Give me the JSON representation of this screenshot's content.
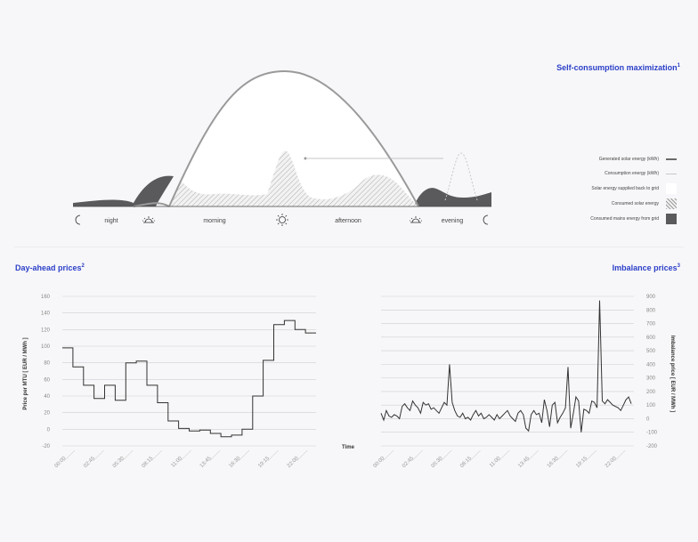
{
  "self_consumption": {
    "title": "Self-consumption maximization",
    "footnote": "1",
    "periods": [
      "night",
      "morning",
      "afternoon",
      "evening"
    ],
    "legend": [
      {
        "label": "Generated solar energy (kWh)",
        "swatch": "line-dark",
        "color": "#6b6b6b"
      },
      {
        "label": "Consumption energy (kWh)",
        "swatch": "line-light",
        "color": "#c8c8c8"
      },
      {
        "label": "Solar energy supplied back to grid",
        "swatch": "white",
        "color": "#ffffff"
      },
      {
        "label": "Consumed solar energy",
        "swatch": "hatch",
        "color": "#9a9a9a"
      },
      {
        "label": "Consumed mains energy from grid",
        "swatch": "dark",
        "color": "#5a5a5d"
      }
    ]
  },
  "day_ahead": {
    "title": "Day-ahead prices",
    "footnote": "2",
    "ylabel": "Price per MTU [ EUR / MWh ]",
    "xlabel": "Time"
  },
  "imbalance": {
    "title": "Imbalance prices",
    "footnote": "3",
    "ylabel": "Imbalance price [ EUR / MWh ]"
  },
  "chart_data": [
    {
      "type": "line",
      "id": "day-ahead",
      "title": "Day-ahead prices",
      "ylabel": "Price per MTU [ EUR / MWh ]",
      "xlabel": "Time",
      "ylim": [
        -20,
        160
      ],
      "yticks": [
        -20,
        0,
        20,
        40,
        60,
        80,
        100,
        120,
        140,
        160
      ],
      "xlim": [
        0,
        24
      ],
      "xticks": [
        0,
        2.75,
        5.5,
        8.25,
        11,
        13.75,
        16.5,
        19.25,
        22
      ],
      "xtick_labels": [
        "00:00",
        "02:45",
        "05:30",
        "08:15",
        "11:00",
        "13:45",
        "16:30",
        "19:15",
        "22:00"
      ],
      "step": true,
      "x": [
        0,
        1,
        2,
        3,
        4,
        5,
        6,
        7,
        8,
        9,
        10,
        11,
        12,
        13,
        14,
        15,
        16,
        17,
        18,
        19,
        20,
        21,
        22,
        23
      ],
      "values": [
        98,
        75,
        53,
        37,
        53,
        35,
        80,
        82,
        53,
        32,
        10,
        1,
        -2,
        -1,
        -5,
        -9,
        -7,
        0,
        40,
        83,
        126,
        131,
        120,
        116
      ]
    },
    {
      "type": "line",
      "id": "imbalance",
      "title": "Imbalance prices",
      "ylabel": "Imbalance price [ EUR / MWh ]",
      "ylim": [
        -200,
        900
      ],
      "yticks": [
        -200,
        -100,
        0,
        100,
        200,
        300,
        400,
        500,
        600,
        700,
        800,
        900
      ],
      "xlim": [
        0,
        24
      ],
      "xticks": [
        0,
        2.75,
        5.5,
        8.25,
        11,
        13.75,
        16.5,
        19.25,
        22
      ],
      "xtick_labels": [
        "00:00",
        "02:45",
        "05:30",
        "08:15",
        "11:00",
        "13:45",
        "16:30",
        "19:15",
        "22:00"
      ],
      "x": [
        0,
        0.25,
        0.5,
        0.75,
        1,
        1.25,
        1.5,
        1.75,
        2,
        2.25,
        2.5,
        2.75,
        3,
        3.25,
        3.5,
        3.75,
        4,
        4.25,
        4.5,
        4.75,
        5,
        5.25,
        5.5,
        5.75,
        6,
        6.25,
        6.5,
        6.75,
        7,
        7.25,
        7.5,
        7.75,
        8,
        8.25,
        8.5,
        8.75,
        9,
        9.25,
        9.5,
        9.75,
        10,
        10.25,
        10.5,
        10.75,
        11,
        11.25,
        11.5,
        11.75,
        12,
        12.25,
        12.5,
        12.75,
        13,
        13.25,
        13.5,
        13.75,
        14,
        14.25,
        14.5,
        14.75,
        15,
        15.25,
        15.5,
        15.75,
        16,
        16.25,
        16.5,
        16.75,
        17,
        17.25,
        17.5,
        17.75,
        18,
        18.25,
        18.5,
        18.75,
        19,
        19.25,
        19.5,
        19.75,
        20,
        20.25,
        20.5,
        20.75,
        21,
        21.25,
        21.5,
        21.75,
        22,
        22.25,
        22.5,
        22.75,
        23,
        23.25,
        23.5,
        23.75
      ],
      "values": [
        40,
        -10,
        60,
        20,
        10,
        30,
        20,
        0,
        90,
        110,
        80,
        60,
        130,
        100,
        80,
        40,
        120,
        100,
        110,
        70,
        80,
        60,
        40,
        80,
        120,
        100,
        400,
        120,
        60,
        20,
        10,
        40,
        0,
        10,
        -10,
        30,
        60,
        20,
        40,
        0,
        10,
        30,
        10,
        -10,
        30,
        0,
        20,
        40,
        60,
        20,
        0,
        -20,
        40,
        60,
        30,
        -70,
        -90,
        30,
        60,
        30,
        40,
        -30,
        140,
        60,
        -60,
        100,
        120,
        -30,
        10,
        40,
        80,
        380,
        -70,
        40,
        160,
        130,
        -100,
        70,
        60,
        40,
        130,
        120,
        80,
        870,
        130,
        110,
        140,
        120,
        100,
        90,
        80,
        60,
        100,
        140,
        160,
        110
      ]
    }
  ]
}
